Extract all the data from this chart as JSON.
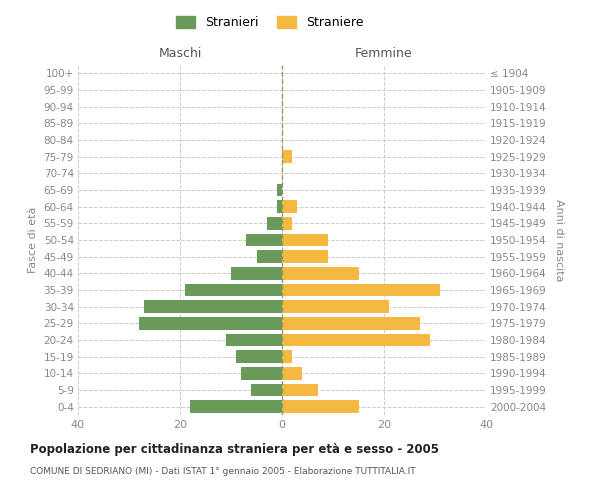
{
  "age_groups": [
    "0-4",
    "5-9",
    "10-14",
    "15-19",
    "20-24",
    "25-29",
    "30-34",
    "35-39",
    "40-44",
    "45-49",
    "50-54",
    "55-59",
    "60-64",
    "65-69",
    "70-74",
    "75-79",
    "80-84",
    "85-89",
    "90-94",
    "95-99",
    "100+"
  ],
  "birth_years": [
    "2000-2004",
    "1995-1999",
    "1990-1994",
    "1985-1989",
    "1980-1984",
    "1975-1979",
    "1970-1974",
    "1965-1969",
    "1960-1964",
    "1955-1959",
    "1950-1954",
    "1945-1949",
    "1940-1944",
    "1935-1939",
    "1930-1934",
    "1925-1929",
    "1920-1924",
    "1915-1919",
    "1910-1914",
    "1905-1909",
    "≤ 1904"
  ],
  "maschi": [
    18,
    6,
    8,
    9,
    11,
    28,
    27,
    19,
    10,
    5,
    7,
    3,
    1,
    1,
    0,
    0,
    0,
    0,
    0,
    0,
    0
  ],
  "femmine": [
    15,
    7,
    4,
    2,
    29,
    27,
    21,
    31,
    15,
    9,
    9,
    2,
    3,
    0,
    0,
    2,
    0,
    0,
    0,
    0,
    0
  ],
  "maschi_color": "#6a9a5a",
  "femmine_color": "#f5b942",
  "grid_color": "#cccccc",
  "tick_label_color": "#888888",
  "header_color": "#555555",
  "title": "Popolazione per cittadinanza straniera per età e sesso - 2005",
  "subtitle": "COMUNE DI SEDRIANO (MI) - Dati ISTAT 1° gennaio 2005 - Elaborazione TUTTITALIA.IT",
  "xlabel_left": "Maschi",
  "xlabel_right": "Femmine",
  "ylabel_left": "Fasce di età",
  "ylabel_right": "Anni di nascita",
  "xlim": 40,
  "legend_stranieri": "Stranieri",
  "legend_straniere": "Straniere",
  "background_color": "#ffffff"
}
